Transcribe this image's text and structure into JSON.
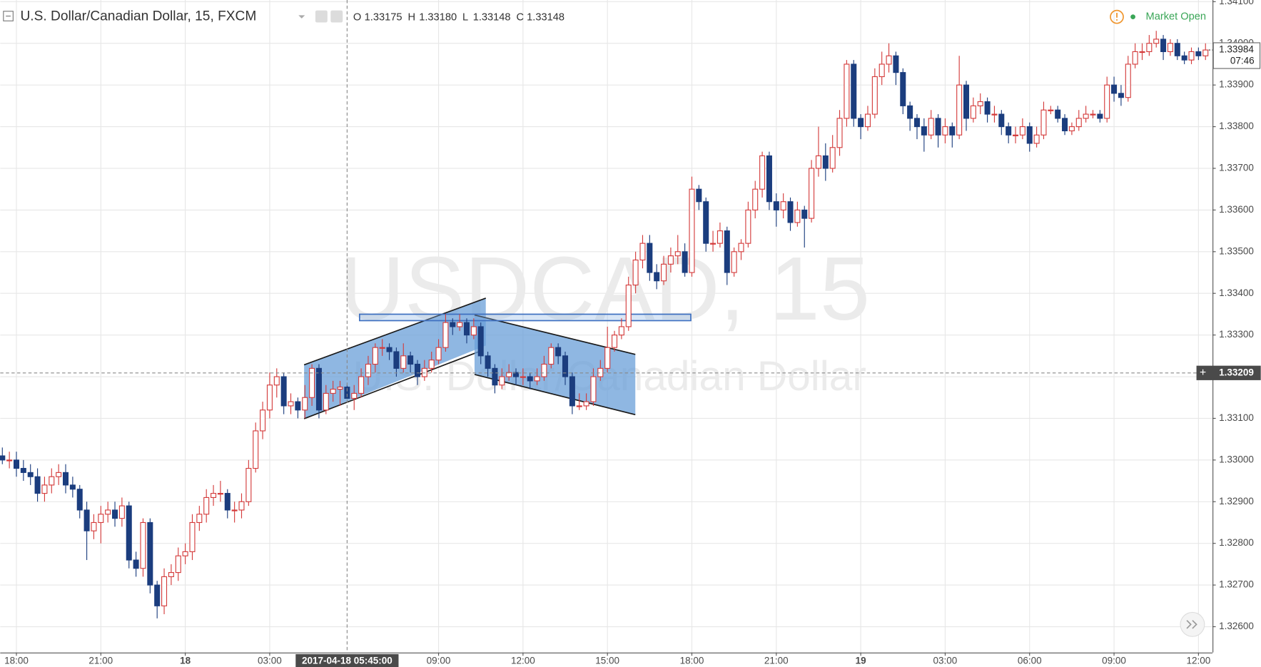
{
  "legend": {
    "symbol": "U.S. Dollar/Canadian Dollar, 15, FXCM",
    "o_label": "O",
    "o": "1.33175",
    "h_label": "H",
    "h": "1.33180",
    "l_label": "L",
    "l": "1.33148",
    "c_label": "C",
    "c": "1.33148"
  },
  "status": "Market Open",
  "watermark": {
    "symbol": "USDCAD, 15",
    "name": "U.S. Dollar/Canadian Dollar"
  },
  "chart_data": {
    "type": "candlestick",
    "ohlc": [
      [
        1.3301,
        1.3303,
        1.3299,
        1.33
      ],
      [
        1.33,
        1.3302,
        1.3298,
        1.33
      ],
      [
        1.33,
        1.3302,
        1.3296,
        1.3298
      ],
      [
        1.3298,
        1.33,
        1.3295,
        1.3297
      ],
      [
        1.3297,
        1.3299,
        1.3294,
        1.3296
      ],
      [
        1.3296,
        1.3298,
        1.329,
        1.3292
      ],
      [
        1.3292,
        1.3296,
        1.329,
        1.3294
      ],
      [
        1.3294,
        1.3298,
        1.3292,
        1.3296
      ],
      [
        1.3296,
        1.3299,
        1.3294,
        1.3297
      ],
      [
        1.3297,
        1.3299,
        1.3292,
        1.3294
      ],
      [
        1.3294,
        1.3296,
        1.3291,
        1.3293
      ],
      [
        1.3293,
        1.3294,
        1.3286,
        1.3288
      ],
      [
        1.3288,
        1.329,
        1.3276,
        1.3283
      ],
      [
        1.3283,
        1.3287,
        1.3281,
        1.3285
      ],
      [
        1.3285,
        1.3289,
        1.328,
        1.3287
      ],
      [
        1.3287,
        1.329,
        1.3285,
        1.3288
      ],
      [
        1.3288,
        1.329,
        1.3284,
        1.3286
      ],
      [
        1.3286,
        1.3291,
        1.3284,
        1.3289
      ],
      [
        1.3289,
        1.329,
        1.3274,
        1.3276
      ],
      [
        1.3276,
        1.3278,
        1.3272,
        1.3274
      ],
      [
        1.3274,
        1.3286,
        1.3272,
        1.3285
      ],
      [
        1.3285,
        1.3286,
        1.3268,
        1.327
      ],
      [
        1.327,
        1.3271,
        1.3262,
        1.3265
      ],
      [
        1.3265,
        1.3274,
        1.3263,
        1.3272
      ],
      [
        1.3272,
        1.3275,
        1.327,
        1.3273
      ],
      [
        1.3273,
        1.3279,
        1.3271,
        1.3277
      ],
      [
        1.3277,
        1.328,
        1.3275,
        1.3278
      ],
      [
        1.3278,
        1.3287,
        1.3276,
        1.3285
      ],
      [
        1.3285,
        1.3289,
        1.3283,
        1.3287
      ],
      [
        1.3287,
        1.3293,
        1.3285,
        1.3291
      ],
      [
        1.3291,
        1.3294,
        1.3289,
        1.3292
      ],
      [
        1.3292,
        1.3295,
        1.329,
        1.3292
      ],
      [
        1.3292,
        1.3293,
        1.3286,
        1.3288
      ],
      [
        1.3288,
        1.329,
        1.3285,
        1.3288
      ],
      [
        1.3288,
        1.3292,
        1.3286,
        1.329
      ],
      [
        1.329,
        1.33,
        1.3289,
        1.3298
      ],
      [
        1.3298,
        1.3309,
        1.3297,
        1.3307
      ],
      [
        1.3307,
        1.3314,
        1.3305,
        1.3312
      ],
      [
        1.3312,
        1.3321,
        1.331,
        1.3318
      ],
      [
        1.3318,
        1.3322,
        1.3315,
        1.332
      ],
      [
        1.332,
        1.3321,
        1.3311,
        1.3313
      ],
      [
        1.3313,
        1.3316,
        1.3311,
        1.3314
      ],
      [
        1.3314,
        1.3315,
        1.331,
        1.3312
      ],
      [
        1.3312,
        1.3318,
        1.331,
        1.3315
      ],
      [
        1.3315,
        1.3323,
        1.3313,
        1.3322
      ],
      [
        1.3322,
        1.3323,
        1.331,
        1.3312
      ],
      [
        1.3312,
        1.3318,
        1.3311,
        1.3316
      ],
      [
        1.3316,
        1.3319,
        1.3314,
        1.3317
      ],
      [
        1.3317,
        1.3319,
        1.3313,
        1.33175
      ],
      [
        1.33175,
        1.3318,
        1.33148,
        1.33148
      ],
      [
        1.33148,
        1.3318,
        1.3312,
        1.3316
      ],
      [
        1.3316,
        1.3322,
        1.3315,
        1.332
      ],
      [
        1.332,
        1.3325,
        1.3318,
        1.3323
      ],
      [
        1.3323,
        1.3328,
        1.3321,
        1.3327
      ],
      [
        1.3327,
        1.3329,
        1.3325,
        1.3327
      ],
      [
        1.3327,
        1.3328,
        1.3324,
        1.3326
      ],
      [
        1.3326,
        1.3327,
        1.332,
        1.3322
      ],
      [
        1.3322,
        1.3328,
        1.3321,
        1.3325
      ],
      [
        1.3325,
        1.3326,
        1.3321,
        1.3323
      ],
      [
        1.3323,
        1.3324,
        1.3318,
        1.332
      ],
      [
        1.332,
        1.3324,
        1.3319,
        1.3322
      ],
      [
        1.3322,
        1.3326,
        1.3321,
        1.3324
      ],
      [
        1.3324,
        1.3329,
        1.3323,
        1.3327
      ],
      [
        1.3327,
        1.3335,
        1.3326,
        1.3333
      ],
      [
        1.3333,
        1.3334,
        1.333,
        1.3332
      ],
      [
        1.3332,
        1.3335,
        1.3331,
        1.3333
      ],
      [
        1.3333,
        1.3334,
        1.3328,
        1.333
      ],
      [
        1.333,
        1.3334,
        1.3329,
        1.3332
      ],
      [
        1.3332,
        1.3333,
        1.3323,
        1.3325
      ],
      [
        1.3325,
        1.3326,
        1.332,
        1.3322
      ],
      [
        1.3322,
        1.3323,
        1.3316,
        1.3318
      ],
      [
        1.3318,
        1.3322,
        1.3317,
        1.332
      ],
      [
        1.332,
        1.3323,
        1.3319,
        1.3321
      ],
      [
        1.3321,
        1.3322,
        1.3318,
        1.332
      ],
      [
        1.332,
        1.3322,
        1.3318,
        1.332
      ],
      [
        1.332,
        1.3321,
        1.3317,
        1.3319
      ],
      [
        1.3319,
        1.3322,
        1.3318,
        1.332
      ],
      [
        1.332,
        1.3325,
        1.3319,
        1.3323
      ],
      [
        1.3323,
        1.3328,
        1.3322,
        1.3327
      ],
      [
        1.3327,
        1.3328,
        1.3323,
        1.3325
      ],
      [
        1.3325,
        1.3326,
        1.3318,
        1.332
      ],
      [
        1.332,
        1.3321,
        1.3311,
        1.3313
      ],
      [
        1.3313,
        1.3316,
        1.3312,
        1.3313
      ],
      [
        1.3313,
        1.3316,
        1.3312,
        1.3314
      ],
      [
        1.3314,
        1.3322,
        1.3313,
        1.332
      ],
      [
        1.332,
        1.3324,
        1.3319,
        1.3322
      ],
      [
        1.3322,
        1.3332,
        1.3321,
        1.3327
      ],
      [
        1.3327,
        1.3331,
        1.3326,
        1.333
      ],
      [
        1.333,
        1.3334,
        1.3329,
        1.3332
      ],
      [
        1.3332,
        1.3344,
        1.3331,
        1.3342
      ],
      [
        1.3342,
        1.335,
        1.334,
        1.3348
      ],
      [
        1.3348,
        1.3354,
        1.3346,
        1.3352
      ],
      [
        1.3352,
        1.3354,
        1.3343,
        1.3345
      ],
      [
        1.3345,
        1.3347,
        1.3341,
        1.3343
      ],
      [
        1.3343,
        1.3349,
        1.3342,
        1.3347
      ],
      [
        1.3347,
        1.3351,
        1.3345,
        1.3349
      ],
      [
        1.3349,
        1.3354,
        1.3347,
        1.335
      ],
      [
        1.335,
        1.3352,
        1.3344,
        1.3345
      ],
      [
        1.3345,
        1.3368,
        1.3344,
        1.3365
      ],
      [
        1.3365,
        1.3366,
        1.336,
        1.3362
      ],
      [
        1.3362,
        1.3363,
        1.335,
        1.3352
      ],
      [
        1.3352,
        1.3355,
        1.335,
        1.3352
      ],
      [
        1.3352,
        1.3357,
        1.3351,
        1.3355
      ],
      [
        1.3355,
        1.3356,
        1.3342,
        1.3345
      ],
      [
        1.3345,
        1.3351,
        1.3344,
        1.335
      ],
      [
        1.335,
        1.3353,
        1.3348,
        1.3352
      ],
      [
        1.3352,
        1.3362,
        1.3351,
        1.336
      ],
      [
        1.336,
        1.3367,
        1.3358,
        1.3365
      ],
      [
        1.3365,
        1.3374,
        1.3363,
        1.3373
      ],
      [
        1.3373,
        1.3374,
        1.336,
        1.3362
      ],
      [
        1.3362,
        1.3364,
        1.3356,
        1.336
      ],
      [
        1.336,
        1.3364,
        1.3358,
        1.3362
      ],
      [
        1.3362,
        1.3363,
        1.3355,
        1.3357
      ],
      [
        1.3357,
        1.3362,
        1.3356,
        1.336
      ],
      [
        1.336,
        1.3361,
        1.3351,
        1.3358
      ],
      [
        1.3358,
        1.3372,
        1.3357,
        1.337
      ],
      [
        1.337,
        1.338,
        1.3368,
        1.3373
      ],
      [
        1.3373,
        1.3376,
        1.3367,
        1.337
      ],
      [
        1.337,
        1.3378,
        1.3369,
        1.3375
      ],
      [
        1.3375,
        1.3384,
        1.3373,
        1.3382
      ],
      [
        1.3382,
        1.3396,
        1.338,
        1.3395
      ],
      [
        1.3395,
        1.3396,
        1.338,
        1.3382
      ],
      [
        1.3382,
        1.3383,
        1.3377,
        1.338
      ],
      [
        1.338,
        1.3385,
        1.3379,
        1.3383
      ],
      [
        1.3383,
        1.3394,
        1.3382,
        1.3392
      ],
      [
        1.3392,
        1.3398,
        1.339,
        1.3395
      ],
      [
        1.3395,
        1.34,
        1.3393,
        1.3397
      ],
      [
        1.3397,
        1.3398,
        1.339,
        1.3393
      ],
      [
        1.3393,
        1.3394,
        1.3383,
        1.3385
      ],
      [
        1.3385,
        1.3386,
        1.3379,
        1.3382
      ],
      [
        1.3382,
        1.3383,
        1.3377,
        1.338
      ],
      [
        1.338,
        1.3382,
        1.3374,
        1.3378
      ],
      [
        1.3378,
        1.3384,
        1.3377,
        1.3382
      ],
      [
        1.3382,
        1.3383,
        1.3375,
        1.3378
      ],
      [
        1.3378,
        1.3382,
        1.3376,
        1.338
      ],
      [
        1.338,
        1.3381,
        1.3375,
        1.3378
      ],
      [
        1.3378,
        1.3397,
        1.3377,
        1.339
      ],
      [
        1.339,
        1.3391,
        1.3379,
        1.3382
      ],
      [
        1.3382,
        1.3387,
        1.3381,
        1.3385
      ],
      [
        1.3385,
        1.3388,
        1.3383,
        1.3386
      ],
      [
        1.3386,
        1.3387,
        1.3381,
        1.3383
      ],
      [
        1.3383,
        1.3385,
        1.3381,
        1.3383
      ],
      [
        1.3383,
        1.3384,
        1.3378,
        1.338
      ],
      [
        1.338,
        1.3381,
        1.3376,
        1.3378
      ],
      [
        1.3378,
        1.338,
        1.3376,
        1.3378
      ],
      [
        1.3378,
        1.3382,
        1.3377,
        1.338
      ],
      [
        1.338,
        1.3381,
        1.3374,
        1.3376
      ],
      [
        1.3376,
        1.338,
        1.3375,
        1.3378
      ],
      [
        1.3378,
        1.3386,
        1.3377,
        1.3384
      ],
      [
        1.3384,
        1.3385,
        1.3383,
        1.3384
      ],
      [
        1.3384,
        1.3385,
        1.3381,
        1.3382
      ],
      [
        1.3382,
        1.3383,
        1.3378,
        1.3379
      ],
      [
        1.3379,
        1.3381,
        1.3378,
        1.338
      ],
      [
        1.338,
        1.3384,
        1.3379,
        1.3382
      ],
      [
        1.3382,
        1.3385,
        1.3381,
        1.3383
      ],
      [
        1.3383,
        1.3384,
        1.3382,
        1.3383
      ],
      [
        1.3383,
        1.3384,
        1.3381,
        1.3382
      ],
      [
        1.3382,
        1.3392,
        1.3381,
        1.339
      ],
      [
        1.339,
        1.3392,
        1.3386,
        1.3388
      ],
      [
        1.3388,
        1.339,
        1.3385,
        1.3387
      ],
      [
        1.3387,
        1.3397,
        1.3386,
        1.3395
      ],
      [
        1.3395,
        1.34,
        1.3394,
        1.3398
      ],
      [
        1.3398,
        1.34,
        1.3396,
        1.3398
      ],
      [
        1.3398,
        1.3402,
        1.3397,
        1.34
      ],
      [
        1.34,
        1.3403,
        1.3399,
        1.3401
      ],
      [
        1.3401,
        1.3402,
        1.3396,
        1.3398
      ],
      [
        1.3398,
        1.3401,
        1.3397,
        1.34
      ],
      [
        1.34,
        1.3401,
        1.3396,
        1.3397
      ],
      [
        1.3397,
        1.3398,
        1.3395,
        1.3396
      ],
      [
        1.3396,
        1.3399,
        1.3395,
        1.3398
      ],
      [
        1.3398,
        1.3399,
        1.3396,
        1.3397
      ],
      [
        1.3397,
        1.34,
        1.3396,
        1.33984
      ]
    ],
    "xlim": [
      -0.3,
      172
    ],
    "ylim": [
      1.32538,
      1.34104
    ],
    "xticks": [
      {
        "value": 2,
        "label": "18:00"
      },
      {
        "value": 14,
        "label": "21:00"
      },
      {
        "value": 26,
        "label": "18"
      },
      {
        "value": 38,
        "label": "03:00"
      },
      {
        "value": 62,
        "label": "09:00"
      },
      {
        "value": 74,
        "label": "12:00"
      },
      {
        "value": 86,
        "label": "15:00"
      },
      {
        "value": 98,
        "label": "18:00"
      },
      {
        "value": 110,
        "label": "21:00"
      },
      {
        "value": 122,
        "label": "19"
      },
      {
        "value": 134,
        "label": "03:00"
      },
      {
        "value": 146,
        "label": "06:00"
      },
      {
        "value": 158,
        "label": "09:00"
      },
      {
        "value": 170,
        "label": "12:00"
      }
    ],
    "yticks": [
      {
        "value": 1.326,
        "label": "1.32600"
      },
      {
        "value": 1.327,
        "label": "1.32700"
      },
      {
        "value": 1.328,
        "label": "1.32800"
      },
      {
        "value": 1.329,
        "label": "1.32900"
      },
      {
        "value": 1.33,
        "label": "1.33000"
      },
      {
        "value": 1.331,
        "label": "1.33100"
      },
      {
        "value": 1.332,
        "label": "1.33200"
      },
      {
        "value": 1.333,
        "label": "1.33300"
      },
      {
        "value": 1.334,
        "label": "1.33400"
      },
      {
        "value": 1.335,
        "label": "1.33500"
      },
      {
        "value": 1.336,
        "label": "1.33600"
      },
      {
        "value": 1.337,
        "label": "1.33700"
      },
      {
        "value": 1.338,
        "label": "1.33800"
      },
      {
        "value": 1.339,
        "label": "1.33900"
      },
      {
        "value": 1.34,
        "label": "1.34000"
      },
      {
        "value": 1.341,
        "label": "1.34100"
      }
    ],
    "grid": true,
    "up_color": "#d43b3b",
    "down_color": "#1b3d7e",
    "crosshair": {
      "x": {
        "value": 49,
        "label": "2017-04-18 05:45:00"
      },
      "y": 1.33209
    },
    "countdown": "07:46"
  }
}
